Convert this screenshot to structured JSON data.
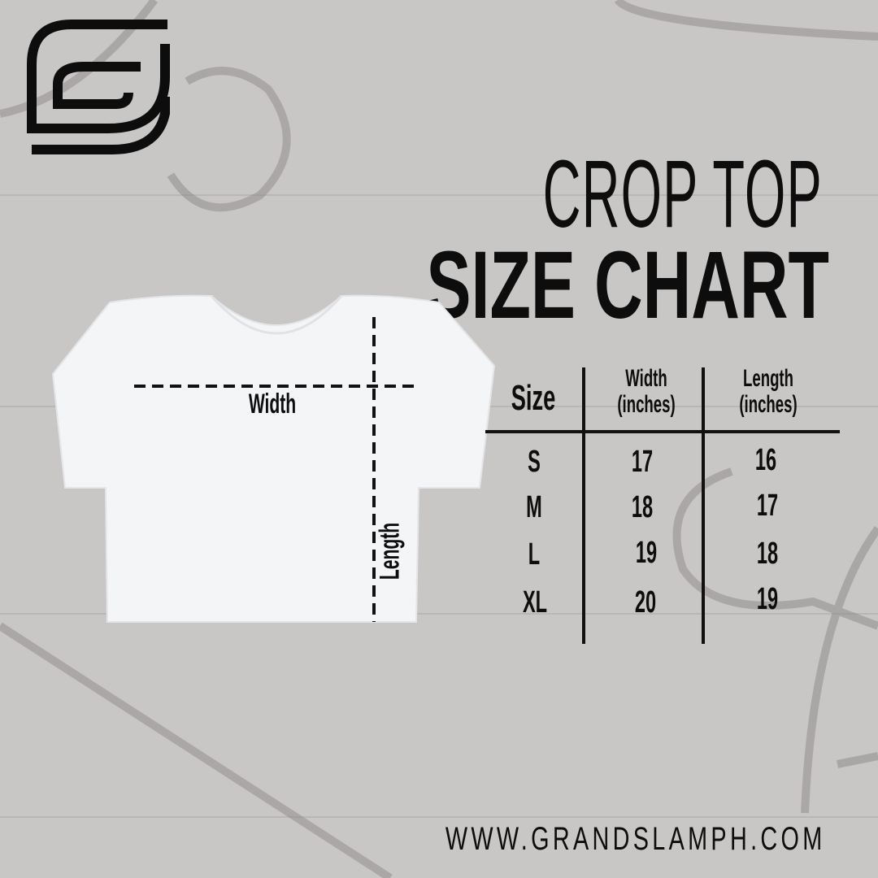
{
  "brand": {
    "logo_letter": "G",
    "website": "WWW.GRANDSLAMPH.COM"
  },
  "title": {
    "line1": "CROP TOP",
    "line2": "SIZE CHART"
  },
  "garment": {
    "width_label": "Width",
    "length_label": "Length"
  },
  "table": {
    "headers": [
      {
        "line1": "Size",
        "line2": ""
      },
      {
        "line1": "Width",
        "line2": "(inches)"
      },
      {
        "line1": "Length",
        "line2": "(inches)"
      }
    ],
    "rows": [
      {
        "size": "S",
        "width": "17",
        "length": "16"
      },
      {
        "size": "M",
        "width": "18",
        "length": "17"
      },
      {
        "size": "L",
        "width": "19",
        "length": "18"
      },
      {
        "size": "XL",
        "width": "20",
        "length": "19"
      }
    ]
  },
  "colors": {
    "background": "#c9c7c5",
    "text": "#0d0d0d",
    "shirt": "#f4f5f7"
  }
}
